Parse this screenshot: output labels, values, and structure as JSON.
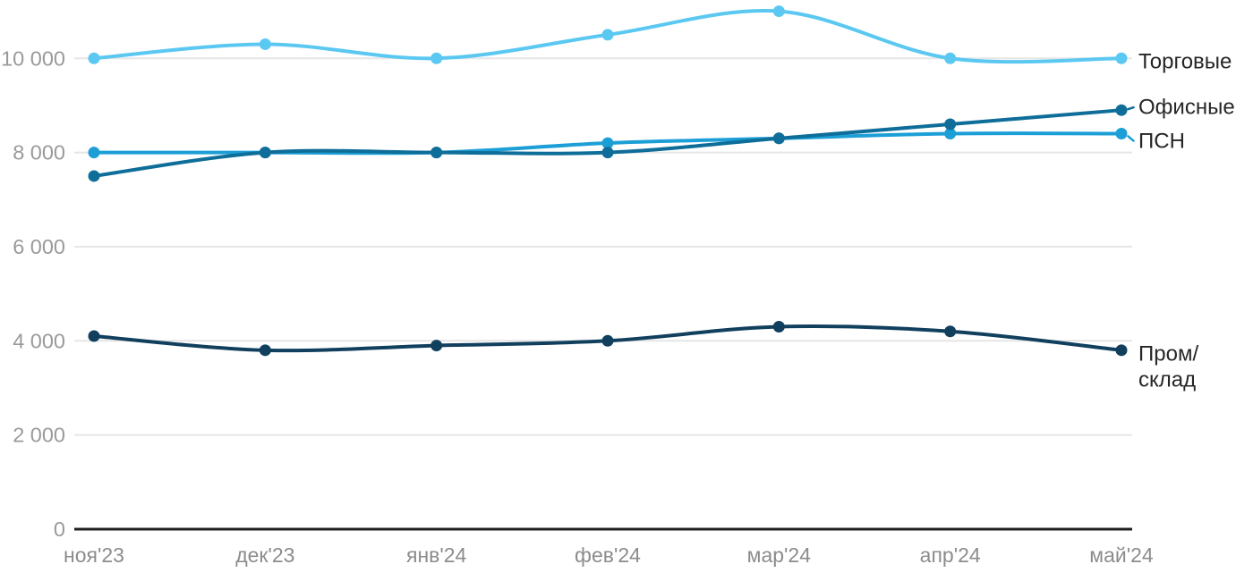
{
  "chart_data": {
    "type": "line",
    "title": "",
    "xlabel": "",
    "ylabel": "",
    "categories": [
      "ноя'23",
      "дек'23",
      "янв'24",
      "фев'24",
      "мар'24",
      "апр'24",
      "май'24"
    ],
    "series": [
      {
        "name": "Торговые",
        "values": [
          10000,
          10300,
          10000,
          10500,
          11000,
          10000,
          10000
        ],
        "color": "#5BC8F2",
        "label_lines": [
          "Торговые"
        ],
        "label_center_y": 69,
        "connector": false
      },
      {
        "name": "Офисные",
        "values": [
          7500,
          8000,
          8000,
          8000,
          8300,
          8600,
          8900
        ],
        "color": "#0E6E99",
        "label_lines": [
          "Офисные"
        ],
        "label_center_y": 120,
        "connector": true
      },
      {
        "name": "ПСН",
        "values": [
          8000,
          8000,
          8000,
          8200,
          8300,
          8400,
          8400
        ],
        "color": "#1C9FD6",
        "label_lines": [
          "ПСН"
        ],
        "label_center_y": 158,
        "connector": true
      },
      {
        "name": "Пром/склад",
        "values": [
          4100,
          3800,
          3900,
          4000,
          4300,
          4200,
          3800
        ],
        "color": "#113F5E",
        "label_lines": [
          "Пром/",
          "склад"
        ],
        "label_center_y": 396,
        "connector": false
      }
    ],
    "yticks": [
      {
        "value": 0,
        "label": "0"
      },
      {
        "value": 2000,
        "label": "2 000"
      },
      {
        "value": 4000,
        "label": "4 000"
      },
      {
        "value": 6000,
        "label": "6 000"
      },
      {
        "value": 8000,
        "label": "8 000"
      },
      {
        "value": 10000,
        "label": "10 000"
      }
    ],
    "ylim": [
      0,
      11200
    ],
    "grid": "horizontal-only",
    "legend_position": "right-of-last-point",
    "colors": {
      "gridline": "#E6E6E6",
      "axis_line": "#1F1F1F",
      "y_tick_label": "#9A9A9A",
      "x_tick_label": "#8C8C8C",
      "series_label_text": "#262626",
      "background": "#FFFFFF"
    }
  }
}
